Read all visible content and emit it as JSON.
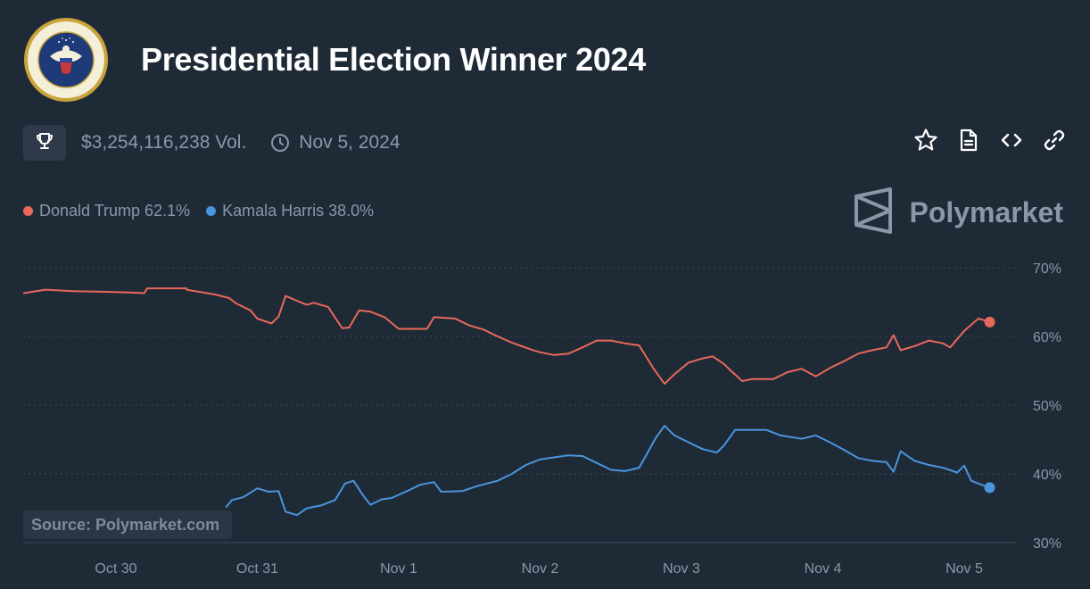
{
  "title": "Presidential Election Winner 2024",
  "meta": {
    "volume": "$3,254,116,238 Vol.",
    "end_date": "Nov 5, 2024"
  },
  "brand": {
    "name": "Polymarket"
  },
  "source_label": "Source: Polymarket.com",
  "icons": {
    "seal": "presidential-seal-icon",
    "trophy": "trophy-icon",
    "clock": "clock-icon",
    "star": "star-icon",
    "document": "document-icon",
    "embed": "code-icon",
    "link": "link-icon",
    "logo": "polymarket-logo-icon"
  },
  "legend": [
    {
      "label": "Donald Trump 62.1%",
      "color": "#e8685a"
    },
    {
      "label": "Kamala Harris 38.0%",
      "color": "#4a95dc"
    }
  ],
  "chart_data": {
    "type": "line",
    "x_ticks": [
      "Oct 30",
      "Oct 31",
      "Nov 1",
      "Nov 2",
      "Nov 3",
      "Nov 4",
      "Nov 5"
    ],
    "y_ticks": [
      "70%",
      "60%",
      "50%",
      "40%",
      "30%"
    ],
    "ylim": [
      30,
      70
    ],
    "xlim": [
      -0.65,
      6.2
    ],
    "grid": true,
    "legend_position": "top-left",
    "series": [
      {
        "name": "Donald Trump",
        "color": "#e8685a",
        "last_value": 62.1,
        "points": [
          [
            -0.65,
            66.3
          ],
          [
            -0.5,
            66.8
          ],
          [
            -0.3,
            66.6
          ],
          [
            -0.1,
            66.5
          ],
          [
            0.1,
            66.4
          ],
          [
            0.2,
            66.3
          ],
          [
            0.22,
            67.0
          ],
          [
            0.5,
            67.0
          ],
          [
            0.5,
            66.8
          ],
          [
            0.7,
            66.1
          ],
          [
            0.8,
            65.6
          ],
          [
            0.85,
            64.8
          ],
          [
            0.95,
            63.8
          ],
          [
            1.0,
            62.6
          ],
          [
            1.1,
            61.9
          ],
          [
            1.15,
            62.9
          ],
          [
            1.2,
            65.9
          ],
          [
            1.28,
            65.2
          ],
          [
            1.35,
            64.6
          ],
          [
            1.4,
            64.9
          ],
          [
            1.5,
            64.3
          ],
          [
            1.6,
            61.2
          ],
          [
            1.65,
            61.3
          ],
          [
            1.72,
            63.8
          ],
          [
            1.8,
            63.6
          ],
          [
            1.9,
            62.8
          ],
          [
            2.0,
            61.1
          ],
          [
            2.2,
            61.1
          ],
          [
            2.25,
            62.8
          ],
          [
            2.4,
            62.6
          ],
          [
            2.5,
            61.6
          ],
          [
            2.6,
            61.0
          ],
          [
            2.7,
            60.0
          ],
          [
            2.8,
            59.1
          ],
          [
            2.88,
            58.5
          ],
          [
            2.95,
            58.0
          ],
          [
            3.0,
            57.7
          ],
          [
            3.1,
            57.3
          ],
          [
            3.2,
            57.5
          ],
          [
            3.3,
            58.4
          ],
          [
            3.4,
            59.4
          ],
          [
            3.5,
            59.4
          ],
          [
            3.6,
            59.0
          ],
          [
            3.7,
            58.7
          ],
          [
            3.8,
            55.4
          ],
          [
            3.88,
            53.1
          ],
          [
            3.95,
            54.5
          ],
          [
            4.05,
            56.2
          ],
          [
            4.15,
            56.8
          ],
          [
            4.22,
            57.1
          ],
          [
            4.3,
            56.0
          ],
          [
            4.35,
            55.0
          ],
          [
            4.43,
            53.5
          ],
          [
            4.5,
            53.8
          ],
          [
            4.65,
            53.8
          ],
          [
            4.75,
            54.8
          ],
          [
            4.85,
            55.3
          ],
          [
            4.95,
            54.2
          ],
          [
            5.05,
            55.4
          ],
          [
            5.15,
            56.4
          ],
          [
            5.25,
            57.5
          ],
          [
            5.35,
            58.0
          ],
          [
            5.45,
            58.4
          ],
          [
            5.5,
            60.2
          ],
          [
            5.55,
            58.0
          ],
          [
            5.65,
            58.6
          ],
          [
            5.75,
            59.4
          ],
          [
            5.85,
            59.0
          ],
          [
            5.9,
            58.4
          ],
          [
            6.0,
            60.8
          ],
          [
            6.1,
            62.6
          ],
          [
            6.18,
            62.1
          ]
        ]
      },
      {
        "name": "Kamala Harris",
        "color": "#4a95dc",
        "last_value": 38.0,
        "points": [
          [
            0.78,
            35.2
          ],
          [
            0.82,
            36.2
          ],
          [
            0.9,
            36.6
          ],
          [
            1.0,
            37.9
          ],
          [
            1.08,
            37.4
          ],
          [
            1.15,
            37.5
          ],
          [
            1.2,
            34.5
          ],
          [
            1.28,
            34.0
          ],
          [
            1.35,
            35.0
          ],
          [
            1.45,
            35.4
          ],
          [
            1.55,
            36.2
          ],
          [
            1.62,
            38.6
          ],
          [
            1.68,
            39.0
          ],
          [
            1.75,
            36.8
          ],
          [
            1.8,
            35.5
          ],
          [
            1.88,
            36.3
          ],
          [
            1.95,
            36.5
          ],
          [
            2.05,
            37.4
          ],
          [
            2.15,
            38.4
          ],
          [
            2.25,
            38.8
          ],
          [
            2.3,
            37.4
          ],
          [
            2.45,
            37.5
          ],
          [
            2.55,
            38.2
          ],
          [
            2.7,
            39.0
          ],
          [
            2.8,
            40.0
          ],
          [
            2.9,
            41.3
          ],
          [
            3.0,
            42.1
          ],
          [
            3.1,
            42.4
          ],
          [
            3.2,
            42.7
          ],
          [
            3.3,
            42.6
          ],
          [
            3.4,
            41.6
          ],
          [
            3.5,
            40.6
          ],
          [
            3.6,
            40.4
          ],
          [
            3.7,
            40.9
          ],
          [
            3.75,
            42.7
          ],
          [
            3.82,
            45.3
          ],
          [
            3.88,
            47.0
          ],
          [
            3.95,
            45.6
          ],
          [
            4.05,
            44.6
          ],
          [
            4.15,
            43.6
          ],
          [
            4.25,
            43.1
          ],
          [
            4.3,
            44.1
          ],
          [
            4.38,
            46.4
          ],
          [
            4.45,
            46.4
          ],
          [
            4.6,
            46.4
          ],
          [
            4.7,
            45.6
          ],
          [
            4.85,
            45.1
          ],
          [
            4.95,
            45.6
          ],
          [
            5.05,
            44.6
          ],
          [
            5.15,
            43.5
          ],
          [
            5.25,
            42.3
          ],
          [
            5.35,
            41.9
          ],
          [
            5.45,
            41.7
          ],
          [
            5.5,
            40.3
          ],
          [
            5.55,
            43.3
          ],
          [
            5.65,
            41.9
          ],
          [
            5.75,
            41.3
          ],
          [
            5.85,
            40.9
          ],
          [
            5.95,
            40.2
          ],
          [
            6.0,
            41.2
          ],
          [
            6.05,
            39.0
          ],
          [
            6.1,
            38.6
          ],
          [
            6.18,
            38.0
          ]
        ]
      }
    ]
  }
}
